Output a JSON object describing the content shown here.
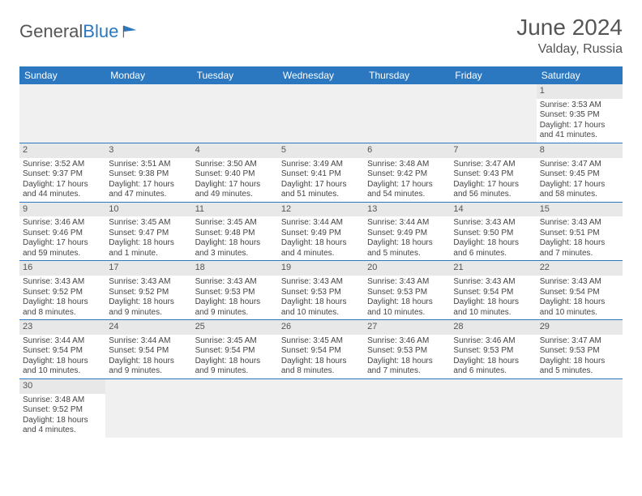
{
  "logo": {
    "text_general": "General",
    "text_blue": "Blue"
  },
  "header": {
    "month_year": "June 2024",
    "location": "Valday, Russia"
  },
  "colors": {
    "header_bar": "#2b77c0",
    "header_text": "#ffffff",
    "daynum_bg": "#e8e8e8",
    "cell_border": "#2b77c0",
    "body_text": "#444444"
  },
  "daynames": [
    "Sunday",
    "Monday",
    "Tuesday",
    "Wednesday",
    "Thursday",
    "Friday",
    "Saturday"
  ],
  "weeks": [
    [
      null,
      null,
      null,
      null,
      null,
      null,
      {
        "n": "1",
        "sr": "Sunrise: 3:53 AM",
        "ss": "Sunset: 9:35 PM",
        "dl": "Daylight: 17 hours and 41 minutes."
      }
    ],
    [
      {
        "n": "2",
        "sr": "Sunrise: 3:52 AM",
        "ss": "Sunset: 9:37 PM",
        "dl": "Daylight: 17 hours and 44 minutes."
      },
      {
        "n": "3",
        "sr": "Sunrise: 3:51 AM",
        "ss": "Sunset: 9:38 PM",
        "dl": "Daylight: 17 hours and 47 minutes."
      },
      {
        "n": "4",
        "sr": "Sunrise: 3:50 AM",
        "ss": "Sunset: 9:40 PM",
        "dl": "Daylight: 17 hours and 49 minutes."
      },
      {
        "n": "5",
        "sr": "Sunrise: 3:49 AM",
        "ss": "Sunset: 9:41 PM",
        "dl": "Daylight: 17 hours and 51 minutes."
      },
      {
        "n": "6",
        "sr": "Sunrise: 3:48 AM",
        "ss": "Sunset: 9:42 PM",
        "dl": "Daylight: 17 hours and 54 minutes."
      },
      {
        "n": "7",
        "sr": "Sunrise: 3:47 AM",
        "ss": "Sunset: 9:43 PM",
        "dl": "Daylight: 17 hours and 56 minutes."
      },
      {
        "n": "8",
        "sr": "Sunrise: 3:47 AM",
        "ss": "Sunset: 9:45 PM",
        "dl": "Daylight: 17 hours and 58 minutes."
      }
    ],
    [
      {
        "n": "9",
        "sr": "Sunrise: 3:46 AM",
        "ss": "Sunset: 9:46 PM",
        "dl": "Daylight: 17 hours and 59 minutes."
      },
      {
        "n": "10",
        "sr": "Sunrise: 3:45 AM",
        "ss": "Sunset: 9:47 PM",
        "dl": "Daylight: 18 hours and 1 minute."
      },
      {
        "n": "11",
        "sr": "Sunrise: 3:45 AM",
        "ss": "Sunset: 9:48 PM",
        "dl": "Daylight: 18 hours and 3 minutes."
      },
      {
        "n": "12",
        "sr": "Sunrise: 3:44 AM",
        "ss": "Sunset: 9:49 PM",
        "dl": "Daylight: 18 hours and 4 minutes."
      },
      {
        "n": "13",
        "sr": "Sunrise: 3:44 AM",
        "ss": "Sunset: 9:49 PM",
        "dl": "Daylight: 18 hours and 5 minutes."
      },
      {
        "n": "14",
        "sr": "Sunrise: 3:43 AM",
        "ss": "Sunset: 9:50 PM",
        "dl": "Daylight: 18 hours and 6 minutes."
      },
      {
        "n": "15",
        "sr": "Sunrise: 3:43 AM",
        "ss": "Sunset: 9:51 PM",
        "dl": "Daylight: 18 hours and 7 minutes."
      }
    ],
    [
      {
        "n": "16",
        "sr": "Sunrise: 3:43 AM",
        "ss": "Sunset: 9:52 PM",
        "dl": "Daylight: 18 hours and 8 minutes."
      },
      {
        "n": "17",
        "sr": "Sunrise: 3:43 AM",
        "ss": "Sunset: 9:52 PM",
        "dl": "Daylight: 18 hours and 9 minutes."
      },
      {
        "n": "18",
        "sr": "Sunrise: 3:43 AM",
        "ss": "Sunset: 9:53 PM",
        "dl": "Daylight: 18 hours and 9 minutes."
      },
      {
        "n": "19",
        "sr": "Sunrise: 3:43 AM",
        "ss": "Sunset: 9:53 PM",
        "dl": "Daylight: 18 hours and 10 minutes."
      },
      {
        "n": "20",
        "sr": "Sunrise: 3:43 AM",
        "ss": "Sunset: 9:53 PM",
        "dl": "Daylight: 18 hours and 10 minutes."
      },
      {
        "n": "21",
        "sr": "Sunrise: 3:43 AM",
        "ss": "Sunset: 9:54 PM",
        "dl": "Daylight: 18 hours and 10 minutes."
      },
      {
        "n": "22",
        "sr": "Sunrise: 3:43 AM",
        "ss": "Sunset: 9:54 PM",
        "dl": "Daylight: 18 hours and 10 minutes."
      }
    ],
    [
      {
        "n": "23",
        "sr": "Sunrise: 3:44 AM",
        "ss": "Sunset: 9:54 PM",
        "dl": "Daylight: 18 hours and 10 minutes."
      },
      {
        "n": "24",
        "sr": "Sunrise: 3:44 AM",
        "ss": "Sunset: 9:54 PM",
        "dl": "Daylight: 18 hours and 9 minutes."
      },
      {
        "n": "25",
        "sr": "Sunrise: 3:45 AM",
        "ss": "Sunset: 9:54 PM",
        "dl": "Daylight: 18 hours and 9 minutes."
      },
      {
        "n": "26",
        "sr": "Sunrise: 3:45 AM",
        "ss": "Sunset: 9:54 PM",
        "dl": "Daylight: 18 hours and 8 minutes."
      },
      {
        "n": "27",
        "sr": "Sunrise: 3:46 AM",
        "ss": "Sunset: 9:53 PM",
        "dl": "Daylight: 18 hours and 7 minutes."
      },
      {
        "n": "28",
        "sr": "Sunrise: 3:46 AM",
        "ss": "Sunset: 9:53 PM",
        "dl": "Daylight: 18 hours and 6 minutes."
      },
      {
        "n": "29",
        "sr": "Sunrise: 3:47 AM",
        "ss": "Sunset: 9:53 PM",
        "dl": "Daylight: 18 hours and 5 minutes."
      }
    ],
    [
      {
        "n": "30",
        "sr": "Sunrise: 3:48 AM",
        "ss": "Sunset: 9:52 PM",
        "dl": "Daylight: 18 hours and 4 minutes."
      },
      null,
      null,
      null,
      null,
      null,
      null
    ]
  ]
}
